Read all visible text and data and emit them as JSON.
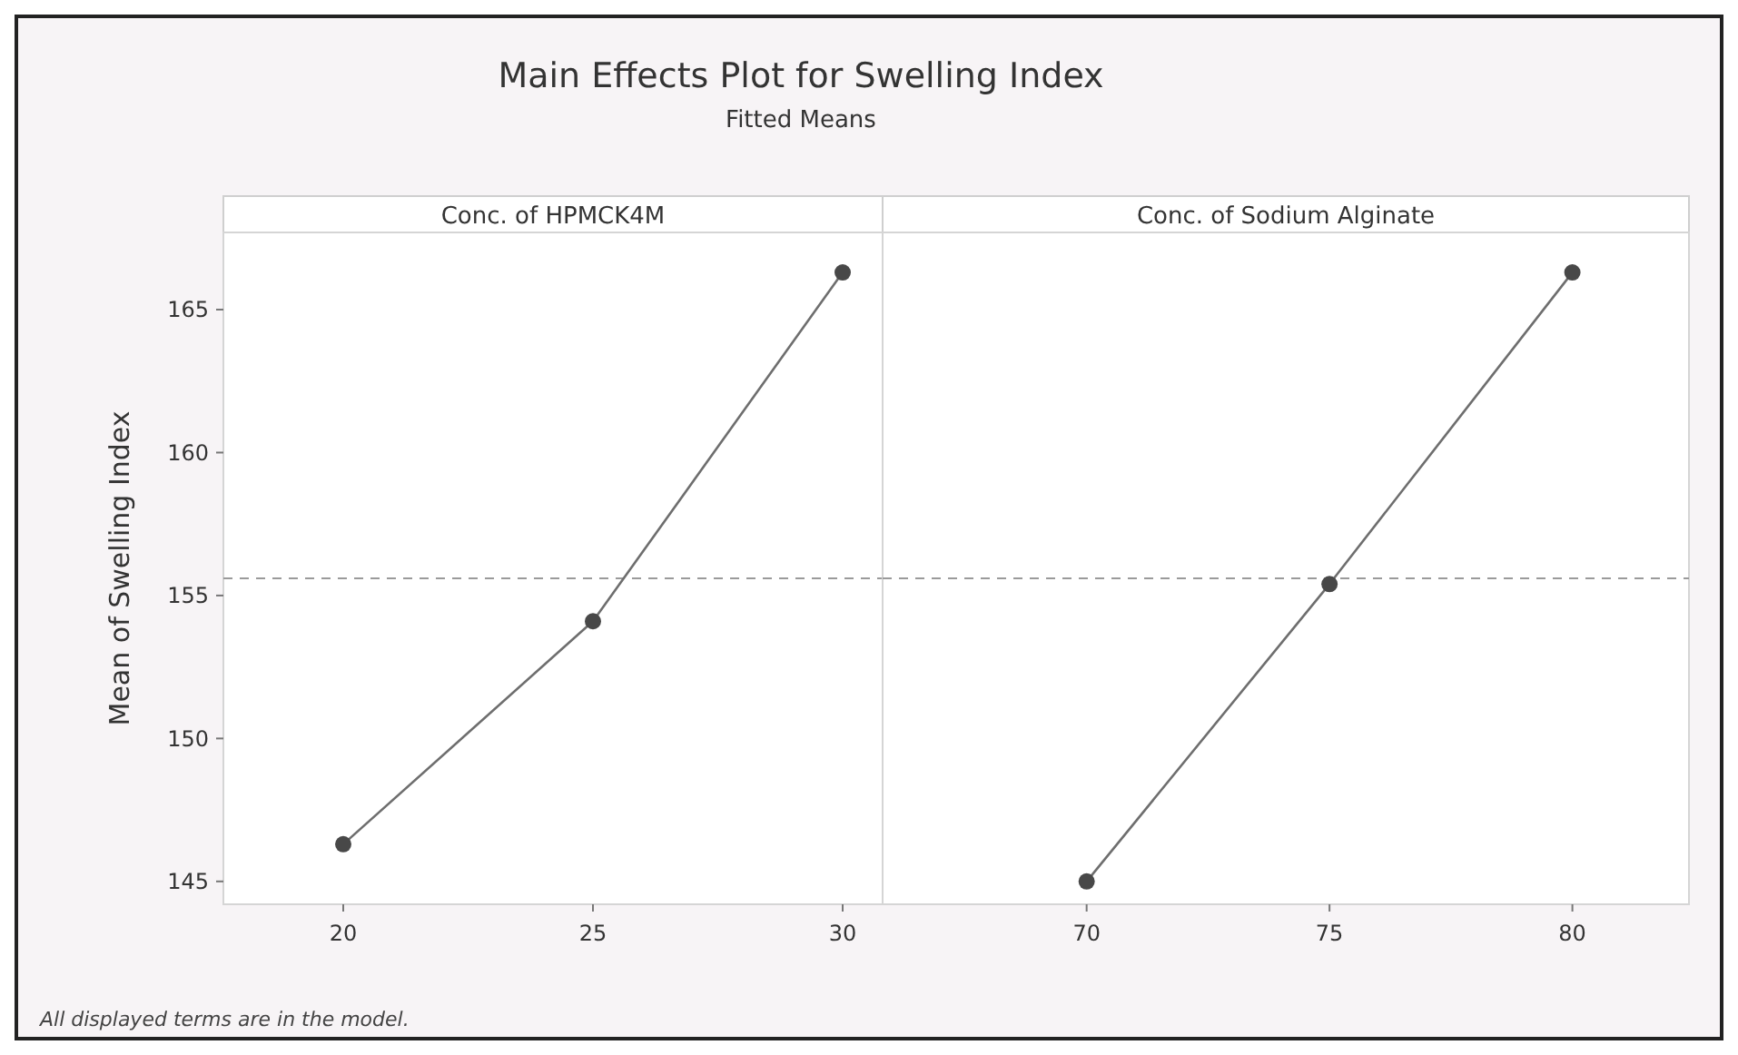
{
  "chart_data": [
    {
      "type": "line",
      "title": "Main Effects Plot for Swelling Index",
      "subtitle": "Fitted Means",
      "xlabel": "Conc. of HPMCK4M",
      "ylabel": "Mean of Swelling Index",
      "annotations": [
        "All displayed terms are in the model."
      ],
      "x": [
        20,
        25,
        30
      ],
      "xlim": [
        17.6,
        30.8
      ],
      "xticks": [
        20,
        25,
        30
      ],
      "ylim": [
        144.2,
        167.7
      ],
      "yticks": [
        145,
        150,
        155,
        160,
        165
      ],
      "marker": "circle",
      "line_style": "solid",
      "series": [
        {
          "color": "#6e6e6e",
          "values": [
            146.3,
            154.1,
            166.3
          ]
        }
      ],
      "ref_lines": [
        {
          "axis": "y",
          "value": 155.6,
          "color": "#9a9a9a",
          "line_style": "dashed"
        }
      ]
    },
    {
      "type": "line",
      "xlabel": "Conc. of Sodium Alginate",
      "x": [
        70,
        75,
        80
      ],
      "xlim": [
        65.8,
        82.4
      ],
      "xticks": [
        70,
        75,
        80
      ],
      "ylim": [
        144.2,
        167.7
      ],
      "tick_labels": "x",
      "marker": "circle",
      "line_style": "solid",
      "series": [
        {
          "color": "#6e6e6e",
          "values": [
            145.0,
            155.4,
            166.3
          ]
        }
      ],
      "ref_lines": [
        {
          "axis": "y",
          "value": 155.6,
          "color": "#9a9a9a",
          "line_style": "dashed"
        }
      ]
    }
  ]
}
